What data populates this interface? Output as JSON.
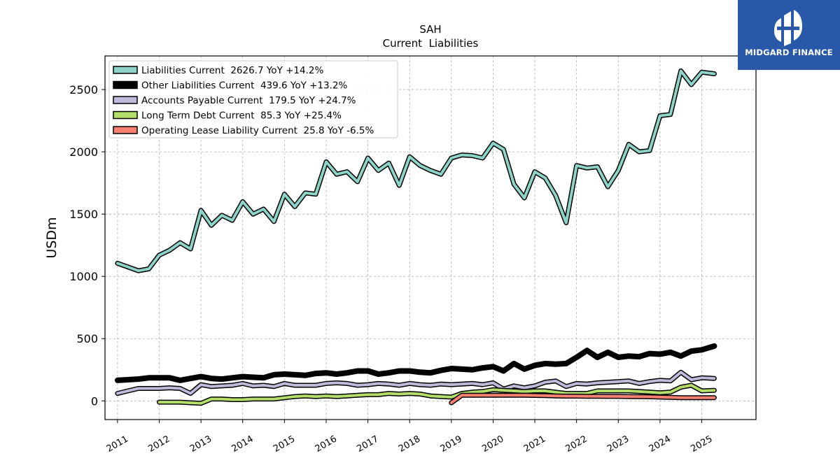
{
  "header": {
    "ticker": "SAH",
    "subtitle": "Current  Liabilities"
  },
  "logo": {
    "text": "MIDGARD FINANCE",
    "background": "#2a58a8",
    "icon": "midgard-logo-icon"
  },
  "chart_data": {
    "type": "line",
    "title": "SAH",
    "subtitle": "Current  Liabilities",
    "ylabel": "USDm",
    "xlabel": "",
    "xlim": [
      2010.7,
      2026.3
    ],
    "ylim": [
      -150,
      2770
    ],
    "yticks": [
      0,
      500,
      1000,
      1500,
      2000,
      2500
    ],
    "xticks": [
      2011,
      2012,
      2013,
      2014,
      2015,
      2016,
      2017,
      2018,
      2019,
      2020,
      2021,
      2022,
      2023,
      2024,
      2025
    ],
    "grid": true,
    "legend_position": "top-left",
    "series": [
      {
        "name": "Liabilities Current  2626.7 YoY +14.2%",
        "color": "#8dd3c7",
        "width": 4,
        "points": [
          [
            2011.0,
            1105
          ],
          [
            2011.25,
            1075
          ],
          [
            2011.5,
            1045
          ],
          [
            2011.75,
            1060
          ],
          [
            2012.0,
            1170
          ],
          [
            2012.25,
            1210
          ],
          [
            2012.5,
            1270
          ],
          [
            2012.75,
            1220
          ],
          [
            2013.0,
            1530
          ],
          [
            2013.25,
            1410
          ],
          [
            2013.5,
            1490
          ],
          [
            2013.75,
            1450
          ],
          [
            2014.0,
            1600
          ],
          [
            2014.25,
            1500
          ],
          [
            2014.5,
            1540
          ],
          [
            2014.75,
            1440
          ],
          [
            2015.0,
            1660
          ],
          [
            2015.25,
            1560
          ],
          [
            2015.5,
            1670
          ],
          [
            2015.75,
            1660
          ],
          [
            2016.0,
            1920
          ],
          [
            2016.25,
            1820
          ],
          [
            2016.5,
            1840
          ],
          [
            2016.75,
            1760
          ],
          [
            2017.0,
            1950
          ],
          [
            2017.25,
            1850
          ],
          [
            2017.5,
            1910
          ],
          [
            2017.75,
            1730
          ],
          [
            2018.0,
            1960
          ],
          [
            2018.25,
            1890
          ],
          [
            2018.5,
            1850
          ],
          [
            2018.75,
            1820
          ],
          [
            2019.0,
            1950
          ],
          [
            2019.25,
            1975
          ],
          [
            2019.5,
            1970
          ],
          [
            2019.75,
            1950
          ],
          [
            2020.0,
            2070
          ],
          [
            2020.25,
            2020
          ],
          [
            2020.5,
            1740
          ],
          [
            2020.75,
            1630
          ],
          [
            2021.0,
            1840
          ],
          [
            2021.25,
            1790
          ],
          [
            2021.5,
            1650
          ],
          [
            2021.75,
            1430
          ],
          [
            2022.0,
            1890
          ],
          [
            2022.25,
            1870
          ],
          [
            2022.5,
            1880
          ],
          [
            2022.75,
            1720
          ],
          [
            2023.0,
            1850
          ],
          [
            2023.25,
            2060
          ],
          [
            2023.5,
            2000
          ],
          [
            2023.75,
            2010
          ],
          [
            2024.0,
            2290
          ],
          [
            2024.25,
            2300
          ],
          [
            2024.5,
            2650
          ],
          [
            2024.75,
            2540
          ],
          [
            2025.0,
            2640
          ],
          [
            2025.3,
            2627
          ]
        ]
      },
      {
        "name": "Other Liabilities Current  439.6 YoY +13.2%",
        "color": "#000000",
        "width": 8,
        "points": [
          [
            2011.0,
            165
          ],
          [
            2011.25,
            170
          ],
          [
            2011.5,
            175
          ],
          [
            2011.75,
            185
          ],
          [
            2012.0,
            185
          ],
          [
            2012.25,
            185
          ],
          [
            2012.5,
            165
          ],
          [
            2012.75,
            180
          ],
          [
            2013.0,
            195
          ],
          [
            2013.25,
            180
          ],
          [
            2013.5,
            175
          ],
          [
            2013.75,
            185
          ],
          [
            2014.0,
            195
          ],
          [
            2014.25,
            190
          ],
          [
            2014.5,
            185
          ],
          [
            2014.75,
            210
          ],
          [
            2015.0,
            215
          ],
          [
            2015.25,
            210
          ],
          [
            2015.5,
            205
          ],
          [
            2015.75,
            220
          ],
          [
            2016.0,
            225
          ],
          [
            2016.25,
            215
          ],
          [
            2016.5,
            225
          ],
          [
            2016.75,
            240
          ],
          [
            2017.0,
            240
          ],
          [
            2017.25,
            215
          ],
          [
            2017.5,
            225
          ],
          [
            2017.75,
            240
          ],
          [
            2018.0,
            240
          ],
          [
            2018.25,
            230
          ],
          [
            2018.5,
            225
          ],
          [
            2018.75,
            245
          ],
          [
            2019.0,
            260
          ],
          [
            2019.25,
            255
          ],
          [
            2019.5,
            250
          ],
          [
            2019.75,
            265
          ],
          [
            2020.0,
            275
          ],
          [
            2020.25,
            240
          ],
          [
            2020.5,
            300
          ],
          [
            2020.75,
            255
          ],
          [
            2021.0,
            285
          ],
          [
            2021.25,
            300
          ],
          [
            2021.5,
            295
          ],
          [
            2021.75,
            300
          ],
          [
            2022.0,
            350
          ],
          [
            2022.25,
            405
          ],
          [
            2022.5,
            350
          ],
          [
            2022.75,
            390
          ],
          [
            2023.0,
            350
          ],
          [
            2023.25,
            360
          ],
          [
            2023.5,
            355
          ],
          [
            2023.75,
            380
          ],
          [
            2024.0,
            375
          ],
          [
            2024.25,
            390
          ],
          [
            2024.5,
            360
          ],
          [
            2024.75,
            400
          ],
          [
            2025.0,
            410
          ],
          [
            2025.3,
            440
          ]
        ]
      },
      {
        "name": "Accounts Payable Current  179.5 YoY +24.7%",
        "color": "#bebada",
        "width": 4,
        "points": [
          [
            2011.0,
            60
          ],
          [
            2011.25,
            80
          ],
          [
            2011.5,
            100
          ],
          [
            2011.75,
            100
          ],
          [
            2012.0,
            100
          ],
          [
            2012.25,
            105
          ],
          [
            2012.5,
            100
          ],
          [
            2012.75,
            60
          ],
          [
            2013.0,
            130
          ],
          [
            2013.25,
            115
          ],
          [
            2013.5,
            120
          ],
          [
            2013.75,
            125
          ],
          [
            2014.0,
            140
          ],
          [
            2014.25,
            120
          ],
          [
            2014.5,
            125
          ],
          [
            2014.75,
            115
          ],
          [
            2015.0,
            140
          ],
          [
            2015.25,
            125
          ],
          [
            2015.5,
            125
          ],
          [
            2015.75,
            125
          ],
          [
            2016.0,
            140
          ],
          [
            2016.25,
            145
          ],
          [
            2016.5,
            140
          ],
          [
            2016.75,
            125
          ],
          [
            2017.0,
            130
          ],
          [
            2017.25,
            140
          ],
          [
            2017.5,
            135
          ],
          [
            2017.75,
            125
          ],
          [
            2018.0,
            140
          ],
          [
            2018.25,
            130
          ],
          [
            2018.5,
            125
          ],
          [
            2018.75,
            135
          ],
          [
            2019.0,
            130
          ],
          [
            2019.25,
            135
          ],
          [
            2019.5,
            140
          ],
          [
            2019.75,
            130
          ],
          [
            2020.0,
            145
          ],
          [
            2020.25,
            95
          ],
          [
            2020.5,
            120
          ],
          [
            2020.75,
            105
          ],
          [
            2021.0,
            120
          ],
          [
            2021.25,
            150
          ],
          [
            2021.5,
            160
          ],
          [
            2021.75,
            115
          ],
          [
            2022.0,
            140
          ],
          [
            2022.25,
            135
          ],
          [
            2022.5,
            145
          ],
          [
            2022.75,
            150
          ],
          [
            2023.0,
            155
          ],
          [
            2023.25,
            160
          ],
          [
            2023.5,
            140
          ],
          [
            2023.75,
            155
          ],
          [
            2024.0,
            165
          ],
          [
            2024.25,
            160
          ],
          [
            2024.5,
            230
          ],
          [
            2024.75,
            170
          ],
          [
            2025.0,
            185
          ],
          [
            2025.3,
            180
          ]
        ]
      },
      {
        "name": "Long Term Debt Current  85.3 YoY +25.4%",
        "color": "#b3de69",
        "width": 4,
        "points": [
          [
            2012.0,
            -10
          ],
          [
            2012.25,
            -10
          ],
          [
            2012.5,
            -10
          ],
          [
            2012.75,
            -15
          ],
          [
            2013.0,
            -20
          ],
          [
            2013.25,
            15
          ],
          [
            2013.5,
            15
          ],
          [
            2013.75,
            10
          ],
          [
            2014.0,
            10
          ],
          [
            2014.25,
            15
          ],
          [
            2014.5,
            15
          ],
          [
            2014.75,
            15
          ],
          [
            2015.0,
            25
          ],
          [
            2015.25,
            35
          ],
          [
            2015.5,
            40
          ],
          [
            2015.75,
            35
          ],
          [
            2016.0,
            40
          ],
          [
            2016.25,
            35
          ],
          [
            2016.5,
            40
          ],
          [
            2016.75,
            45
          ],
          [
            2017.0,
            50
          ],
          [
            2017.25,
            50
          ],
          [
            2017.5,
            60
          ],
          [
            2017.75,
            55
          ],
          [
            2018.0,
            60
          ],
          [
            2018.25,
            55
          ],
          [
            2018.5,
            40
          ],
          [
            2018.75,
            35
          ],
          [
            2019.0,
            30
          ],
          [
            2019.25,
            60
          ],
          [
            2019.5,
            70
          ],
          [
            2019.75,
            75
          ],
          [
            2020.0,
            90
          ],
          [
            2020.25,
            85
          ],
          [
            2020.5,
            80
          ],
          [
            2020.75,
            75
          ],
          [
            2021.0,
            80
          ],
          [
            2021.25,
            80
          ],
          [
            2021.5,
            70
          ],
          [
            2021.75,
            60
          ],
          [
            2022.0,
            60
          ],
          [
            2022.25,
            60
          ],
          [
            2022.5,
            80
          ],
          [
            2022.75,
            80
          ],
          [
            2023.0,
            80
          ],
          [
            2023.25,
            80
          ],
          [
            2023.5,
            75
          ],
          [
            2023.75,
            70
          ],
          [
            2024.0,
            65
          ],
          [
            2024.25,
            70
          ],
          [
            2024.5,
            110
          ],
          [
            2024.75,
            125
          ],
          [
            2025.0,
            80
          ],
          [
            2025.3,
            85
          ]
        ]
      },
      {
        "name": "Operating Lease Liability Current  25.8 YoY -6.5%",
        "color": "#fb8072",
        "width": 4,
        "points": [
          [
            2019.0,
            -15
          ],
          [
            2019.25,
            45
          ],
          [
            2019.5,
            45
          ],
          [
            2019.75,
            45
          ],
          [
            2020.0,
            45
          ],
          [
            2020.25,
            45
          ],
          [
            2020.5,
            45
          ],
          [
            2020.75,
            45
          ],
          [
            2021.0,
            44
          ],
          [
            2021.25,
            42
          ],
          [
            2021.5,
            40
          ],
          [
            2021.75,
            38
          ],
          [
            2022.0,
            38
          ],
          [
            2022.25,
            37
          ],
          [
            2022.5,
            37
          ],
          [
            2022.75,
            36
          ],
          [
            2023.0,
            36
          ],
          [
            2023.25,
            35
          ],
          [
            2023.5,
            34
          ],
          [
            2023.75,
            33
          ],
          [
            2024.0,
            30
          ],
          [
            2024.25,
            28
          ],
          [
            2024.5,
            26
          ],
          [
            2024.75,
            26
          ],
          [
            2025.0,
            26
          ],
          [
            2025.3,
            26
          ]
        ]
      }
    ]
  }
}
